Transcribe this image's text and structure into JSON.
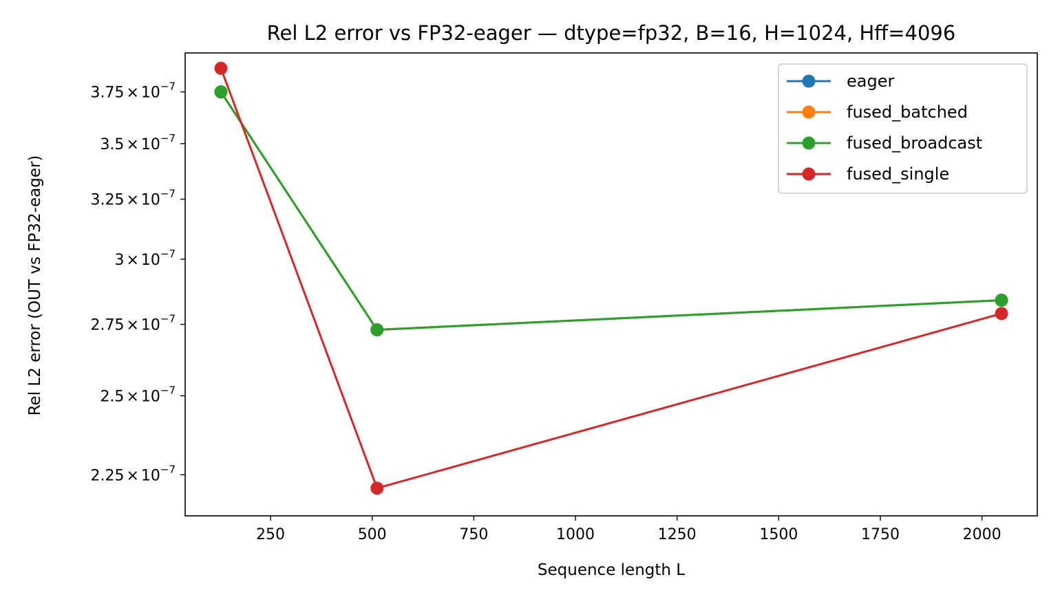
{
  "chart_data": {
    "type": "line",
    "title": "Rel L2 error vs FP32-eager — dtype=fp32, B=16, H=1024, Hff=4096",
    "xlabel": "Sequence length L",
    "ylabel": "Rel L2 error (OUT vs FP32-eager)",
    "x_scale": "linear",
    "y_scale": "log",
    "xlim": [
      40,
      2136
    ],
    "ylim": [
      2.13e-07,
      3.95e-07
    ],
    "grid": false,
    "legend_position": "top-right",
    "x_ticks": [
      {
        "value": 250,
        "label": "250"
      },
      {
        "value": 500,
        "label": "500"
      },
      {
        "value": 750,
        "label": "750"
      },
      {
        "value": 1000,
        "label": "1000"
      },
      {
        "value": 1250,
        "label": "1250"
      },
      {
        "value": 1500,
        "label": "1500"
      },
      {
        "value": 1750,
        "label": "1750"
      },
      {
        "value": 2000,
        "label": "2000"
      }
    ],
    "y_ticks": [
      {
        "value": 2.25e-07,
        "mantissa": "2.25"
      },
      {
        "value": 2.5e-07,
        "mantissa": "2.5"
      },
      {
        "value": 2.75e-07,
        "mantissa": "2.75"
      },
      {
        "value": 3e-07,
        "mantissa": "3"
      },
      {
        "value": 3.25e-07,
        "mantissa": "3.25"
      },
      {
        "value": 3.5e-07,
        "mantissa": "3.5"
      },
      {
        "value": 3.75e-07,
        "mantissa": "3.75"
      }
    ],
    "y_tick_times": "×",
    "y_tick_base": "10",
    "y_tick_exponent": "−7",
    "x": [
      128,
      512,
      2048
    ],
    "series": [
      {
        "name": "eager",
        "color": "#1f77b4",
        "values": [
          3.75e-07,
          2.73e-07,
          2.84e-07
        ]
      },
      {
        "name": "fused_batched",
        "color": "#ff7f0e",
        "values": [
          3.75e-07,
          2.73e-07,
          2.84e-07
        ]
      },
      {
        "name": "fused_broadcast",
        "color": "#2ca02c",
        "values": [
          3.75e-07,
          2.73e-07,
          2.84e-07
        ]
      },
      {
        "name": "fused_single",
        "color": "#d62728",
        "values": [
          3.87e-07,
          2.21e-07,
          2.79e-07
        ]
      }
    ]
  }
}
